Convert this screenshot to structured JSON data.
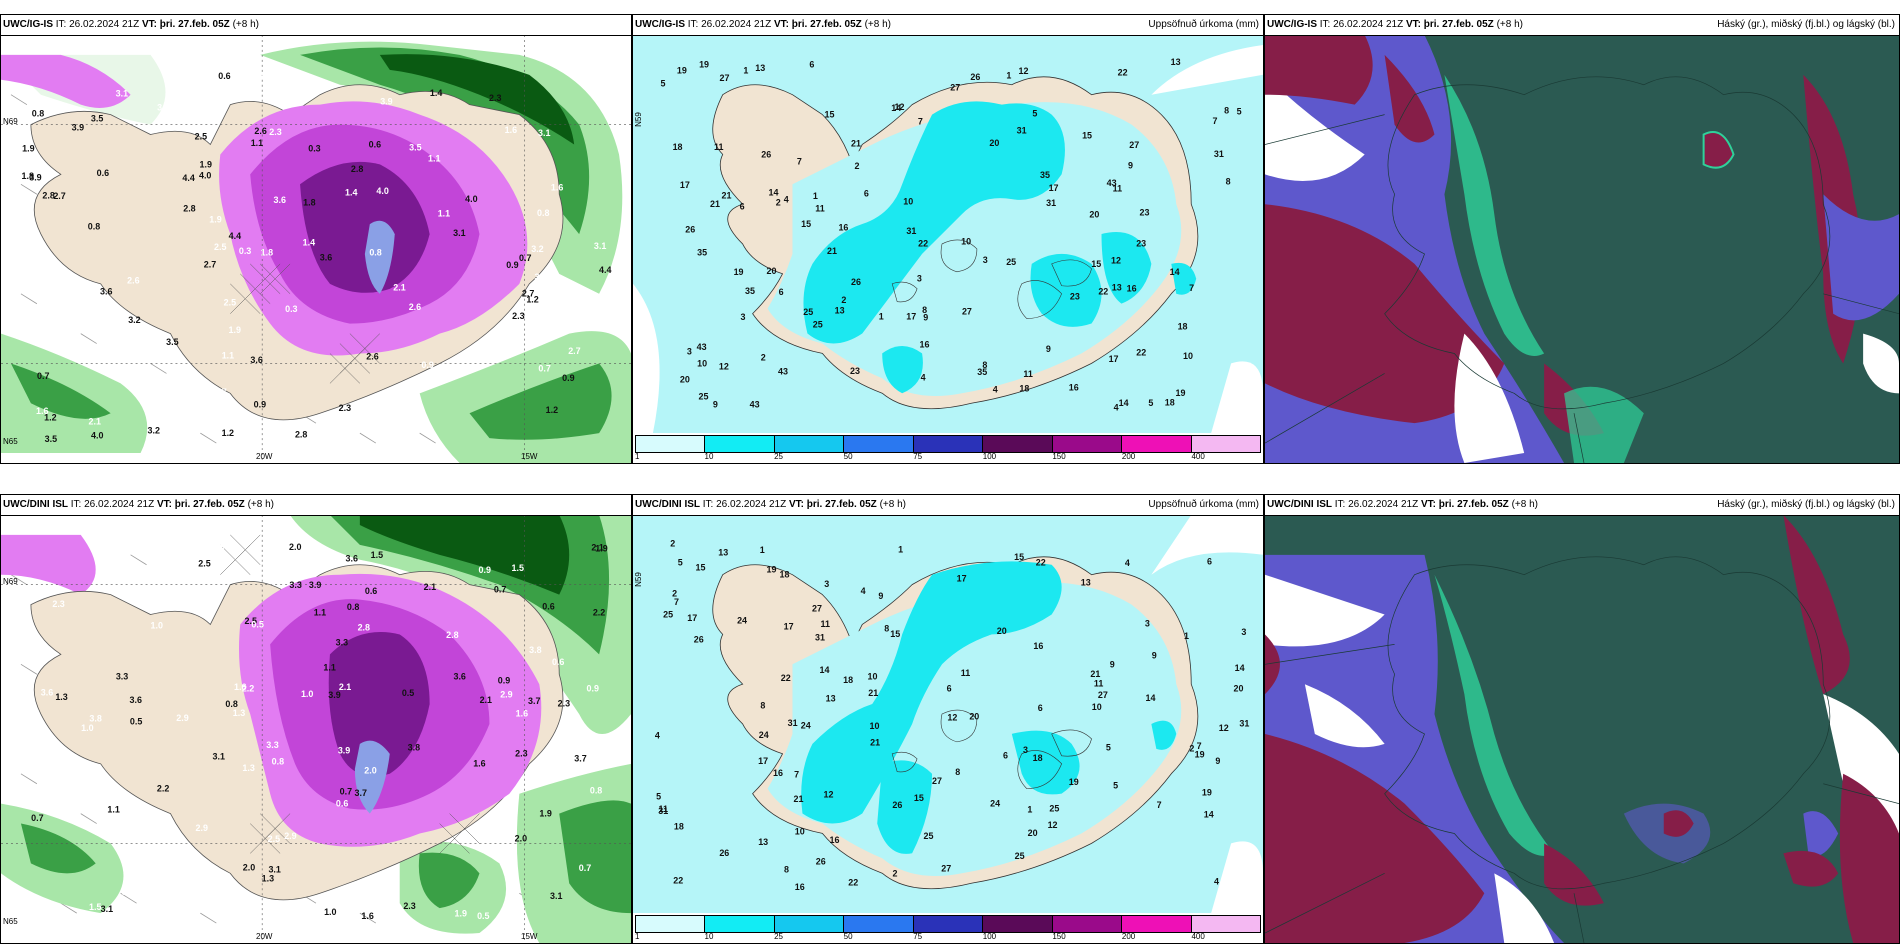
{
  "colors": {
    "land": "#f1e4d2",
    "sea_light": "#e8f7e8",
    "green1": "#a8e6a8",
    "green2": "#3aa046",
    "green3": "#0a5a12",
    "magenta1": "#e27cf2",
    "magenta2": "#c245d8",
    "magenta3": "#7a1a92",
    "blue_core": "#8aa0e6",
    "precip_bg": "#b5f5f8",
    "precip_cyan": "#1ce8f0",
    "cloud_dark": "#2b5a52",
    "cloud_maroon": "#861e48",
    "cloud_blue": "#5e58cc",
    "cloud_green": "#2fd19a"
  },
  "colorbar": {
    "ticks": [
      "1",
      "10",
      "25",
      "50",
      "75",
      "100",
      "150",
      "200",
      "400"
    ],
    "colors": [
      "#d7fbfd",
      "#12ecf4",
      "#15c8ef",
      "#2a78f0",
      "#2a32b8",
      "#5a0a58",
      "#9a0a8a",
      "#ee10b6",
      "#f4b8f2"
    ]
  },
  "panels": [
    {
      "id": "ig-top-left",
      "model": "UWC/IG-IS",
      "it_prefix": "IT:",
      "it_value": "26.02.2024 21Z",
      "vt_prefix": "VT:",
      "vt_value": "þri. 27.feb. 05Z",
      "lead": "(+8 h)",
      "right_title": "",
      "axis": {
        "x1": "20W",
        "x2": "15W",
        "y1": "N69",
        "y2": "N65"
      },
      "numbers": [
        "1.2",
        "0.9",
        "0.3",
        "3.2",
        "2.6",
        "1.6",
        "4.0",
        "3.1",
        "2.3",
        "1.9",
        "3.9",
        "3.5",
        "2.1",
        "2.8",
        "3.6",
        "1.1",
        "1.4",
        "0.6",
        "0.7",
        "0.8",
        "4.4",
        "2.5",
        "1.8",
        "2.7"
      ]
    },
    {
      "id": "ig-top-mid",
      "model": "UWC/IG-IS",
      "it_prefix": "IT:",
      "it_value": "26.02.2024 21Z",
      "vt_prefix": "VT:",
      "vt_value": "þri. 27.feb. 05Z",
      "lead": "(+8 h)",
      "right_title": "Uppsöfnuð úrkoma (mm)",
      "axis": {
        "y1": "N59"
      },
      "numbers": [
        "3",
        "2",
        "1",
        "12",
        "18",
        "15",
        "17",
        "21",
        "13",
        "20",
        "23",
        "26",
        "19",
        "14",
        "16",
        "9",
        "10",
        "8",
        "7",
        "6",
        "5",
        "4",
        "11",
        "25",
        "22",
        "31",
        "35",
        "43",
        "27"
      ]
    },
    {
      "id": "ig-top-right",
      "model": "UWC/IG-IS",
      "it_prefix": "IT:",
      "it_value": "26.02.2024 21Z",
      "vt_prefix": "VT:",
      "vt_value": "þri. 27.feb. 05Z",
      "lead": "(+8 h)",
      "right_title": "Háský (gr.), miðský (fj.bl.) og lágský (bl.)"
    },
    {
      "id": "dini-bottom-left",
      "model": "UWC/DINI ISL",
      "it_prefix": "IT:",
      "it_value": "26.02.2024 21Z",
      "vt_prefix": "VT:",
      "vt_value": "þri. 27.feb. 05Z",
      "lead": "(+8 h)",
      "right_title": "",
      "axis": {
        "x1": "20W",
        "x2": "15W",
        "y1": "N69",
        "y2": "N65"
      },
      "numbers": [
        "0.9",
        "3.1",
        "3.3",
        "0.6",
        "2.3",
        "3.8",
        "2.8",
        "1.9",
        "2.5",
        "3.9",
        "1.6",
        "2.0",
        "3.6",
        "2.1",
        "1.0",
        "1.3",
        "0.7",
        "0.8",
        "2.9",
        "1.5",
        "3.7",
        "1.1",
        "2.2",
        "0.5"
      ]
    },
    {
      "id": "dini-bottom-mid",
      "model": "UWC/DINI ISL",
      "it_prefix": "IT:",
      "it_value": "26.02.2024 21Z",
      "vt_prefix": "VT:",
      "vt_value": "þri. 27.feb. 05Z",
      "lead": "(+8 h)",
      "right_title": "Uppsöfnuð úrkoma (mm)",
      "axis": {
        "y1": "N59"
      },
      "numbers": [
        "5",
        "2",
        "4",
        "6",
        "3",
        "1",
        "9",
        "12",
        "22",
        "19",
        "21",
        "20",
        "16",
        "17",
        "27",
        "18",
        "15",
        "13",
        "11",
        "10",
        "14",
        "25",
        "26",
        "31",
        "24",
        "8",
        "7"
      ]
    },
    {
      "id": "dini-bottom-right",
      "model": "UWC/DINI ISL",
      "it_prefix": "IT:",
      "it_value": "26.02.2024 21Z",
      "vt_prefix": "VT:",
      "vt_value": "þri. 27.feb. 05Z",
      "lead": "(+8 h)",
      "right_title": "Háský (gr.), miðský (fj.bl.) og lágský (bl.)"
    }
  ]
}
